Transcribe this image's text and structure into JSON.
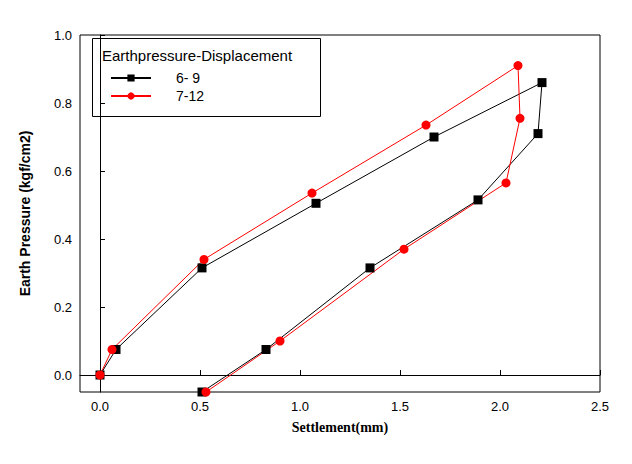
{
  "chart_data": {
    "type": "line",
    "legend_title": "Earthpressure-Displacement",
    "x_label": "Settlement(mm)",
    "y_label": "Earth Pressure (kgf/cm2)",
    "xlim": [
      -0.1,
      2.5
    ],
    "xticks": [
      {
        "value": 0,
        "label": "0.0"
      },
      0.5,
      {
        "value": 1,
        "label": "1.0"
      },
      1.5,
      {
        "value": 2,
        "label": "2.0"
      },
      2.5
    ],
    "ylim": [
      -0.05,
      1.0
    ],
    "yticks": [
      {
        "value": 0,
        "label": "0.0"
      },
      0.2,
      0.4,
      0.6,
      0.8,
      {
        "value": 1,
        "label": "1.0"
      }
    ],
    "grid": false,
    "legend": "upper left",
    "series": [
      {
        "name": "6- 9",
        "color": "#000000",
        "marker": "square",
        "x": [
          0,
          0.08,
          0.51,
          1.08,
          1.67,
          2.21,
          2.19,
          1.89,
          1.35,
          0.83,
          0.51
        ],
        "values": [
          0,
          0.075,
          0.315,
          0.505,
          0.7,
          0.86,
          0.71,
          0.515,
          0.315,
          0.075,
          -0.05
        ]
      },
      {
        "name": "7-12",
        "color": "#ff0000",
        "marker": "circle",
        "x": [
          0,
          0.06,
          0.52,
          1.06,
          1.63,
          2.09,
          2.1,
          2.03,
          1.52,
          0.9,
          0.53
        ],
        "values": [
          0,
          0.075,
          0.34,
          0.535,
          0.735,
          0.91,
          0.755,
          0.565,
          0.37,
          0.1,
          -0.05
        ]
      }
    ]
  }
}
